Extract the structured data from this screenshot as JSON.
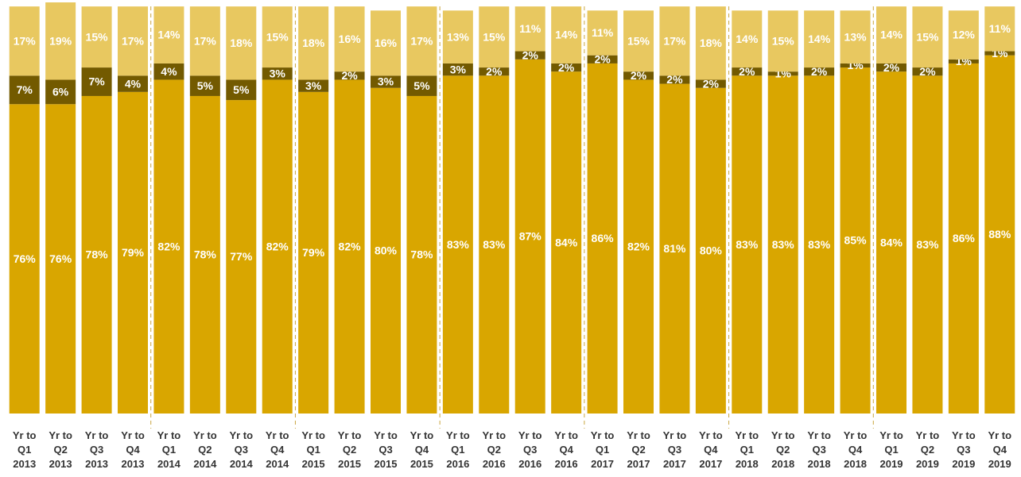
{
  "chart_data": {
    "type": "stacked-bar",
    "categories": [
      "Yr to Q1 2013",
      "Yr to Q2 2013",
      "Yr to Q3 2013",
      "Yr to Q4 2013",
      "Yr to Q1 2014",
      "Yr to Q2 2014",
      "Yr to Q3 2014",
      "Yr to Q4 2014",
      "Yr to Q1 2015",
      "Yr to Q2 2015",
      "Yr to Q3 2015",
      "Yr to Q4 2015",
      "Yr to Q1 2016",
      "Yr to Q2 2016",
      "Yr to Q3 2016",
      "Yr to Q4 2016",
      "Yr to Q1 2017",
      "Yr to Q2 2017",
      "Yr to Q3 2017",
      "Yr to Q4 2017",
      "Yr to Q1 2018",
      "Yr to Q2 2018",
      "Yr to Q3 2018",
      "Yr to Q4 2018",
      "Yr to Q1 2019",
      "Yr to Q2 2019",
      "Yr to Q3 2019",
      "Yr to Q4 2019"
    ],
    "series": [
      {
        "color": "#d9a600",
        "values": [
          76,
          76,
          78,
          79,
          82,
          78,
          77,
          82,
          79,
          82,
          80,
          78,
          83,
          83,
          87,
          84,
          86,
          82,
          81,
          80,
          83,
          83,
          83,
          85,
          84,
          83,
          86,
          88
        ],
        "value_labels": [
          "76%",
          "76%",
          "78%",
          "79%",
          "82%",
          "78%",
          "77%",
          "82%",
          "79%",
          "82%",
          "80%",
          "78%",
          "83%",
          "83%",
          "87%",
          "84%",
          "86%",
          "82%",
          "81%",
          "80%",
          "83%",
          "83%",
          "83%",
          "85%",
          "84%",
          "83%",
          "86%",
          "88%"
        ]
      },
      {
        "color": "#735a00",
        "values": [
          7,
          6,
          7,
          4,
          4,
          5,
          5,
          3,
          3,
          2,
          3,
          5,
          3,
          2,
          2,
          2,
          2,
          2,
          2,
          2,
          2,
          1,
          2,
          1,
          2,
          2,
          1,
          1
        ],
        "value_labels": [
          "7%",
          "6%",
          "7%",
          "4%",
          "4%",
          "5%",
          "5%",
          "3%",
          "3%",
          "2%",
          "3%",
          "5%",
          "3%",
          "2%",
          "2%",
          "2%",
          "2%",
          "2%",
          "2%",
          "2%",
          "2%",
          "1%",
          "2%",
          "1%",
          "2%",
          "2%",
          "1%",
          "1%"
        ]
      },
      {
        "color": "#e8c860",
        "values": [
          17,
          19,
          15,
          17,
          14,
          17,
          18,
          15,
          18,
          16,
          16,
          17,
          13,
          15,
          11,
          14,
          11,
          15,
          17,
          18,
          14,
          15,
          14,
          13,
          14,
          15,
          12,
          11
        ],
        "value_labels": [
          "17%",
          "19%",
          "15%",
          "17%",
          "14%",
          "17%",
          "18%",
          "15%",
          "18%",
          "16%",
          "16%",
          "17%",
          "13%",
          "15%",
          "11%",
          "14%",
          "11%",
          "15%",
          "17%",
          "18%",
          "14%",
          "15%",
          "14%",
          "13%",
          "14%",
          "15%",
          "12%",
          "11%"
        ]
      }
    ]
  }
}
